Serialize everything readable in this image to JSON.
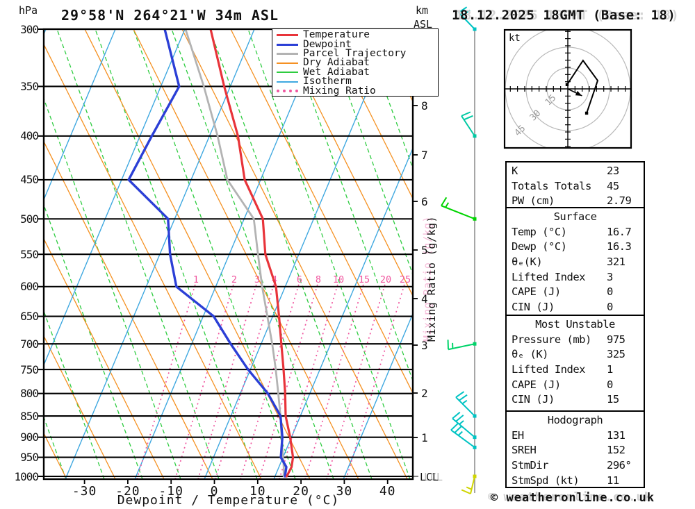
{
  "header": {
    "pressure_unit": "hPa",
    "station_title": "29°58'N 264°21'W 34m ASL",
    "altitude_unit_line1": "km",
    "altitude_unit_line2": "ASL",
    "datetime": "18.12.2025 18GMT (Base: 18)"
  },
  "legend": {
    "items": [
      {
        "name": "temperature",
        "label": "Temperature",
        "color": "#e8343a",
        "style": "solid",
        "width": 3
      },
      {
        "name": "dewpoint",
        "label": "Dewpoint",
        "color": "#2b3fd6",
        "style": "solid",
        "width": 3
      },
      {
        "name": "parcel-trajectory",
        "label": "Parcel Trajectory",
        "color": "#b3b3b3",
        "style": "solid",
        "width": 3
      },
      {
        "name": "dry-adiabat",
        "label": "Dry Adiabat",
        "color": "#f59123",
        "style": "solid",
        "width": 2
      },
      {
        "name": "wet-adiabat",
        "label": "Wet Adiabat",
        "color": "#2ecc40",
        "style": "solid",
        "width": 2
      },
      {
        "name": "isotherm",
        "label": "Isotherm",
        "color": "#3fa8e0",
        "style": "solid",
        "width": 2
      },
      {
        "name": "mixing-ratio",
        "label": "Mixing Ratio",
        "color": "#f0559e",
        "style": "dotted",
        "width": 2
      }
    ]
  },
  "axes": {
    "pressure_ticks": [
      300,
      350,
      400,
      450,
      500,
      550,
      600,
      650,
      700,
      750,
      800,
      850,
      900,
      950,
      1000
    ],
    "temp_ticks": [
      -30,
      -20,
      -10,
      0,
      10,
      20,
      30,
      40
    ],
    "x_label": "Dewpoint / Temperature (°C)",
    "km_ticks": [
      1,
      2,
      3,
      4,
      5,
      6,
      7,
      8
    ],
    "mixing_ratio_axis_label": "Mixing Ratio (g/kg)",
    "lcl_label": "LCL"
  },
  "chart_data": {
    "type": "skew-t-log-p-sounding",
    "pressure_range_hpa": [
      300,
      1000
    ],
    "temp_axis_range_c": [
      -30,
      40
    ],
    "pressure_hpa": [
      300,
      350,
      400,
      450,
      500,
      550,
      600,
      650,
      700,
      750,
      800,
      850,
      900,
      950,
      975,
      1000
    ],
    "temperature_c": [
      -44.3,
      -35.6,
      -27.6,
      -21.8,
      -13.8,
      -9.8,
      -4.2,
      -0.6,
      2.6,
      5.6,
      8.3,
      10.6,
      13.7,
      16.3,
      16.9,
      16.7
    ],
    "dewpoint_c": [
      -54.9,
      -46.0,
      -47.5,
      -48.6,
      -35.7,
      -31.8,
      -27.2,
      -15.7,
      -9.1,
      -2.6,
      4.3,
      9.4,
      11.9,
      13.5,
      15.7,
      16.3
    ],
    "parcel_c": [
      -50.1,
      -40.3,
      -32.3,
      -25.8,
      -15.9,
      -11.5,
      -7.4,
      -3.3,
      0.5,
      3.8,
      6.7,
      9.4,
      11.7,
      14.0,
      15.1,
      16.0
    ],
    "mixing_ratio_g_kg": [
      1,
      2,
      3,
      4,
      6,
      8,
      10,
      15,
      20,
      25
    ],
    "wind_barbs": [
      {
        "pressure_hpa": 300,
        "speed_kt": 20,
        "color": "#00c3c3"
      },
      {
        "pressure_hpa": 400,
        "speed_kt": 20,
        "color": "#00c9a3"
      },
      {
        "pressure_hpa": 500,
        "speed_kt": 15,
        "color": "#00d400"
      },
      {
        "pressure_hpa": 700,
        "speed_kt": 15,
        "color": "#00d46a"
      },
      {
        "pressure_hpa": 850,
        "speed_kt": 25,
        "color": "#00c3c3"
      },
      {
        "pressure_hpa": 900,
        "speed_kt": 25,
        "color": "#00c3c3"
      },
      {
        "pressure_hpa": 925,
        "speed_kt": 25,
        "color": "#00c3c3"
      },
      {
        "pressure_hpa": 1000,
        "speed_kt": 15,
        "color": "#cfd400"
      }
    ],
    "hodograph": {
      "unit": "kt",
      "ring_labels": [
        15,
        30,
        45
      ],
      "trace_uv_kt": [
        [
          -0.5,
          3.0
        ],
        [
          10.6,
          19.8
        ],
        [
          20.8,
          5.8
        ],
        [
          13.1,
          -16.9
        ]
      ],
      "storm_motion": {
        "dir_deg": 296,
        "speed_kt": 11
      }
    }
  },
  "info_panel": {
    "indices": {
      "rows": [
        [
          "K",
          "23"
        ],
        [
          "Totals Totals",
          "45"
        ],
        [
          "PW (cm)",
          "2.79"
        ]
      ]
    },
    "surface": {
      "title": "Surface",
      "rows": [
        [
          "Temp (°C)",
          "16.7"
        ],
        [
          "Dewp (°C)",
          "16.3"
        ],
        [
          "θₑ(K)",
          "321"
        ],
        [
          "Lifted Index",
          "3"
        ],
        [
          "CAPE (J)",
          "0"
        ],
        [
          "CIN (J)",
          "0"
        ]
      ]
    },
    "most_unstable": {
      "title": "Most Unstable",
      "rows": [
        [
          "Pressure (mb)",
          "975"
        ],
        [
          "θₑ (K)",
          "325"
        ],
        [
          "Lifted Index",
          "1"
        ],
        [
          "CAPE (J)",
          "0"
        ],
        [
          "CIN (J)",
          "15"
        ]
      ]
    },
    "hodograph": {
      "title": "Hodograph",
      "rows": [
        [
          "EH",
          "131"
        ],
        [
          "SREH",
          "152"
        ],
        [
          "StmDir",
          "296°"
        ],
        [
          "StmSpd (kt)",
          "11"
        ]
      ]
    }
  },
  "footer": {
    "copyright": "© weatheronline.co.uk"
  }
}
